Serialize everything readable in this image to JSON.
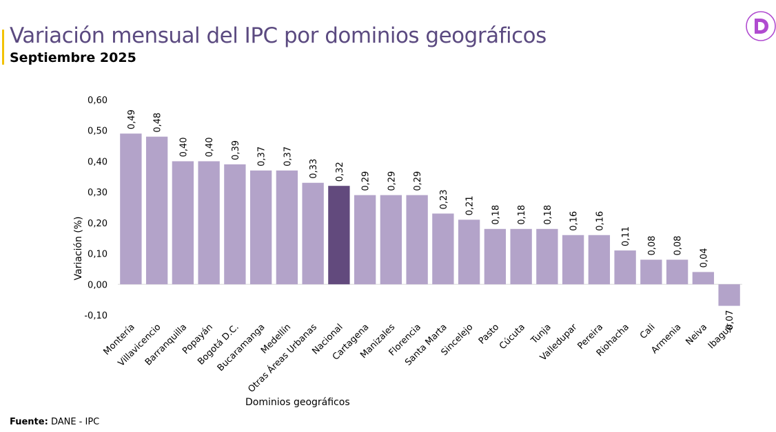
{
  "header": {
    "title": "Variación mensual del IPC por dominios geográficos",
    "subtitle": "Septiembre 2025"
  },
  "footer": {
    "source_label": "Fuente:",
    "source_value": "DANE - IPC"
  },
  "colors": {
    "bar": "#b3a3c9",
    "highlight_bar": "#624a7d",
    "title": "#5b4a80",
    "accent": "#f2c200",
    "logo": "#b04bd0"
  },
  "logo": {
    "icon": "dane-d-logo-icon"
  },
  "chart_data": {
    "type": "bar",
    "categories": [
      "Montería",
      "Villavicencio",
      "Barranquilla",
      "Popayán",
      "Bogotá D.C.",
      "Bucaramanga",
      "Medellín",
      "Otras Áreas Urbanas",
      "Nacional",
      "Cartagena",
      "Manizales",
      "Florencia",
      "Santa Marta",
      "Sincelejo",
      "Pasto",
      "Cúcuta",
      "Tunja",
      "Valledupar",
      "Pereira",
      "Riohacha",
      "Cali",
      "Armenia",
      "Neiva",
      "Ibagué"
    ],
    "values": [
      0.49,
      0.48,
      0.4,
      0.4,
      0.39,
      0.37,
      0.37,
      0.33,
      0.32,
      0.29,
      0.29,
      0.29,
      0.23,
      0.21,
      0.18,
      0.18,
      0.18,
      0.16,
      0.16,
      0.11,
      0.08,
      0.08,
      0.04,
      -0.07
    ],
    "value_labels": [
      "0,49",
      "0,48",
      "0,40",
      "0,40",
      "0,39",
      "0,37",
      "0,37",
      "0,33",
      "0,32",
      "0,29",
      "0,29",
      "0,29",
      "0,23",
      "0,21",
      "0,18",
      "0,18",
      "0,18",
      "0,16",
      "0,16",
      "0,11",
      "0,08",
      "0,08",
      "0,04",
      "-0,07"
    ],
    "highlight_category": "Nacional",
    "xlabel": "Dominios geográficos",
    "ylabel": "Variación (%)",
    "ylim": [
      -0.1,
      0.6
    ],
    "yticks": [
      -0.1,
      0.0,
      0.1,
      0.2,
      0.3,
      0.4,
      0.5,
      0.6
    ],
    "ytick_labels": [
      "-0,10",
      "0,00",
      "0,10",
      "0,20",
      "0,30",
      "0,40",
      "0,50",
      "0,60"
    ],
    "grid": false,
    "legend": "none"
  }
}
